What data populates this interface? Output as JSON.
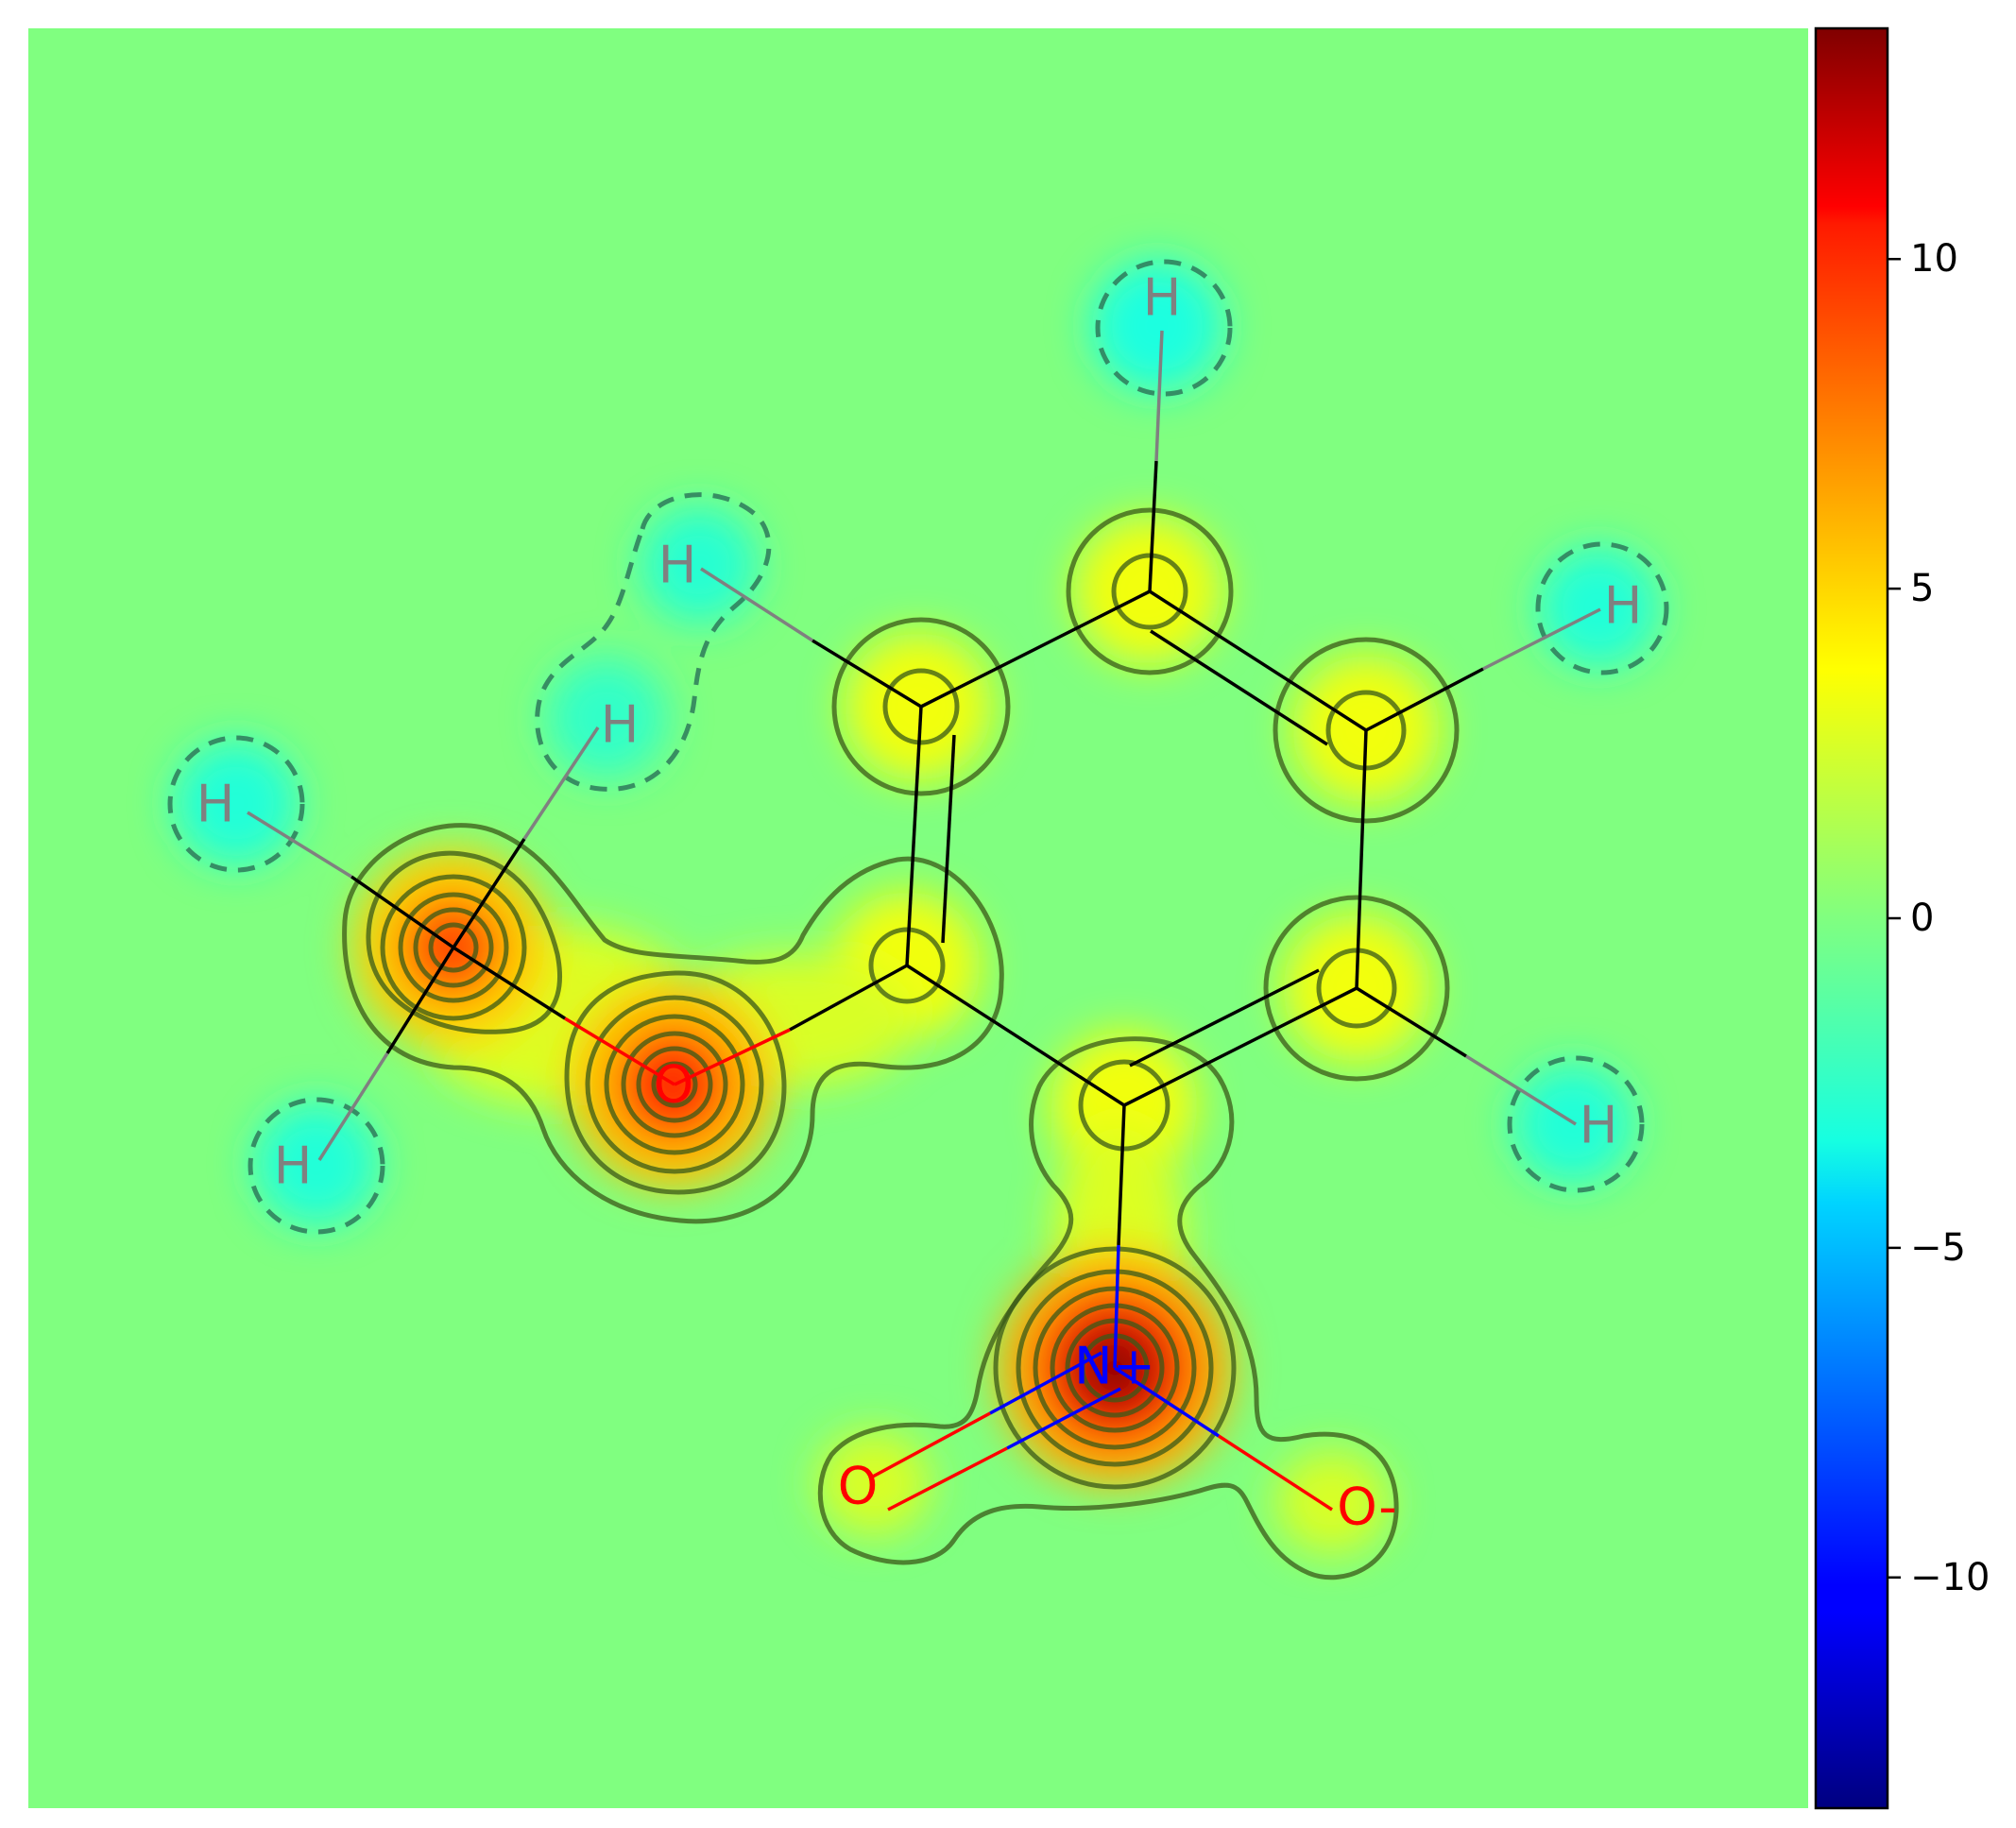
{
  "figure": {
    "type": "molecular contribution map",
    "molecule": "2-nitroanisole",
    "background_color": "#80ff80",
    "colormap": "jet"
  },
  "atoms": [
    {
      "id": "C_methyl",
      "label": "",
      "weight": 8.0
    },
    {
      "id": "O_ether",
      "label": "O",
      "weight": 9.0,
      "color": "#ff0000"
    },
    {
      "id": "C_ring_O",
      "label": "",
      "weight": 3.0
    },
    {
      "id": "C_ring_a",
      "label": "",
      "weight": 3.0
    },
    {
      "id": "C_ring_top",
      "label": "",
      "weight": 3.0
    },
    {
      "id": "C_ring_b",
      "label": "",
      "weight": 3.0
    },
    {
      "id": "C_ring_c",
      "label": "",
      "weight": 3.0
    },
    {
      "id": "C_ring_N",
      "label": "",
      "weight": 3.0
    },
    {
      "id": "N_nitro",
      "label": "N+",
      "weight": 13.5,
      "color": "#0000ff"
    },
    {
      "id": "O_nitro_1",
      "label": "O",
      "weight": 1.5,
      "color": "#ff0000"
    },
    {
      "id": "O_nitro_2",
      "label": "O-",
      "weight": 1.5,
      "color": "#ff0000"
    },
    {
      "id": "H_top",
      "label": "H",
      "weight": -4.0,
      "color": "#808080"
    },
    {
      "id": "H_right_top",
      "label": "H",
      "weight": -3.5,
      "color": "#808080"
    },
    {
      "id": "H_right_bottom",
      "label": "H",
      "weight": -3.5,
      "color": "#808080"
    },
    {
      "id": "H_ring_left",
      "label": "H",
      "weight": -3.5,
      "color": "#808080"
    },
    {
      "id": "H_methyl_1",
      "label": "H",
      "weight": -2.5,
      "color": "#808080"
    },
    {
      "id": "H_methyl_2",
      "label": "H",
      "weight": -3.5,
      "color": "#808080"
    },
    {
      "id": "H_methyl_3",
      "label": "H",
      "weight": -3.5,
      "color": "#808080"
    }
  ],
  "colorbar": {
    "min": -13.5,
    "max": 13.5,
    "ticks": [
      {
        "value": 10,
        "label": "10"
      },
      {
        "value": 5,
        "label": "5"
      },
      {
        "value": 0,
        "label": "0"
      },
      {
        "value": -5,
        "label": "−5"
      },
      {
        "value": -10,
        "label": "−10"
      }
    ]
  }
}
